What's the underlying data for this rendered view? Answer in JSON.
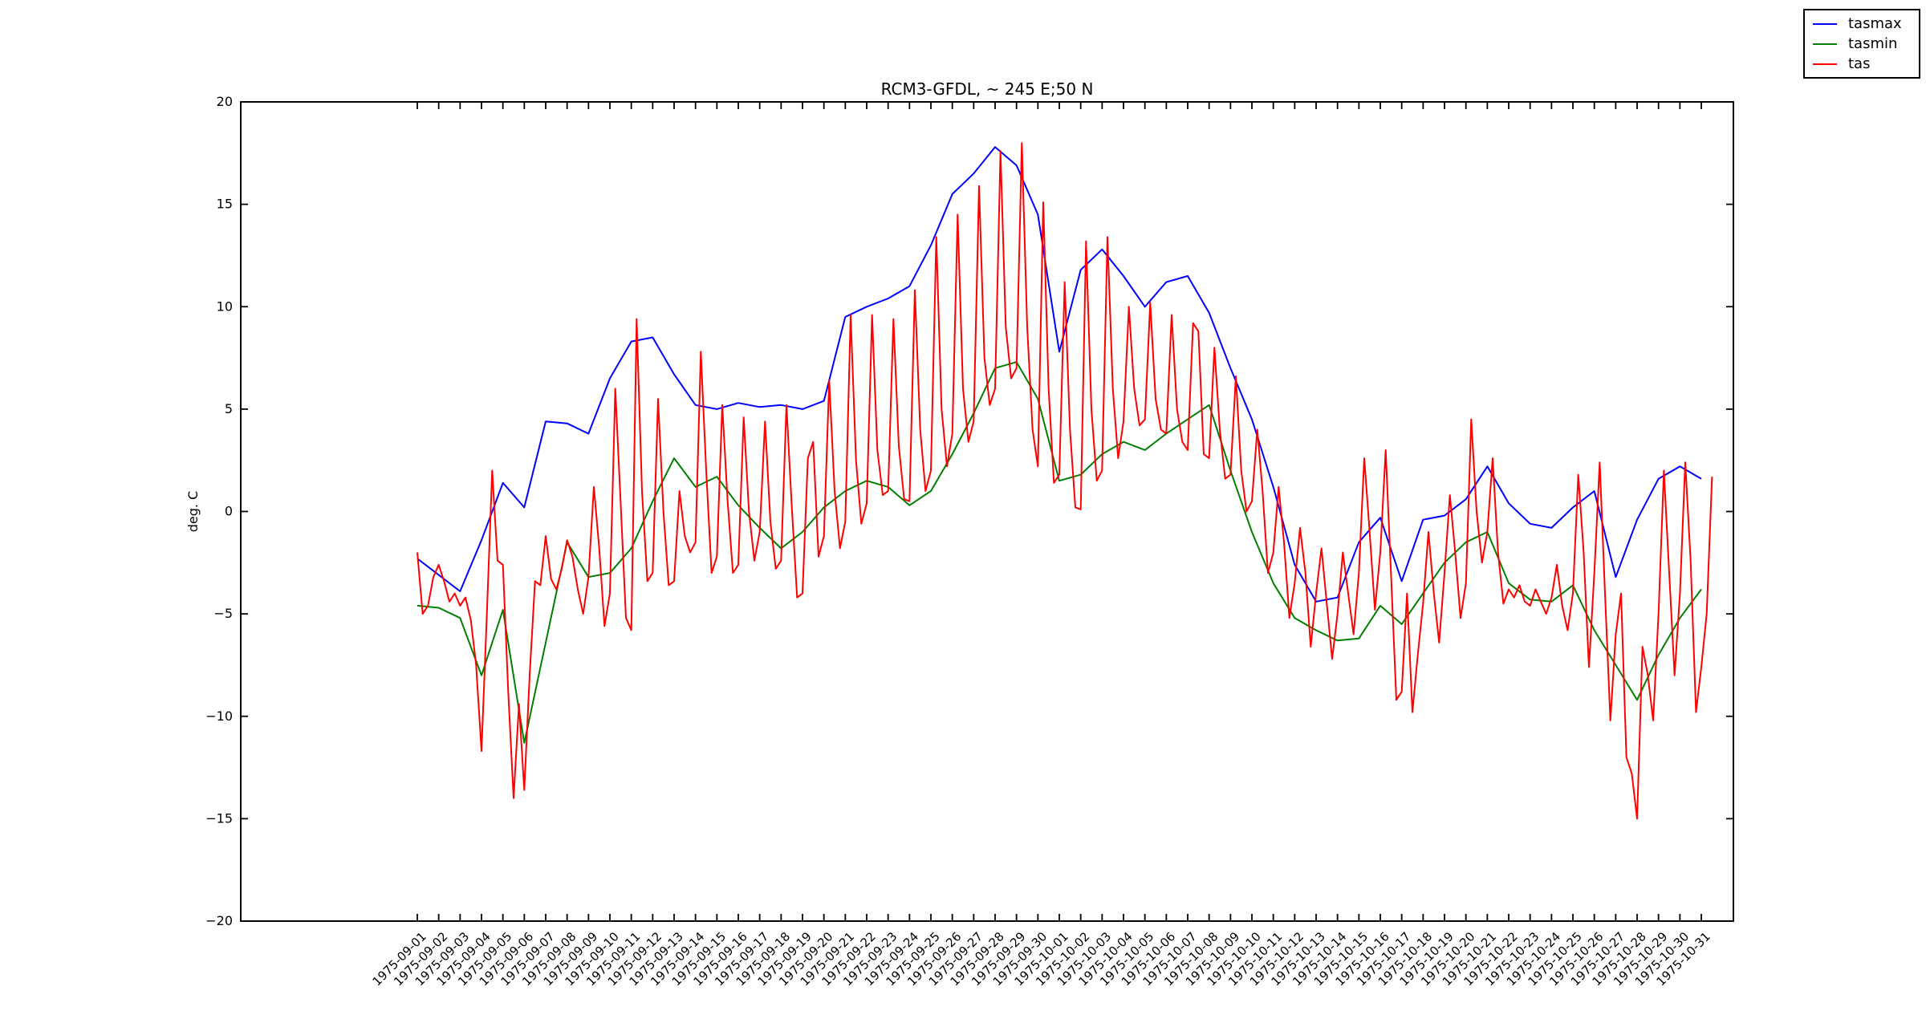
{
  "title": "RCM3-GFDL, ~ 245 E;50 N",
  "ylabel": "deg. C",
  "legend": {
    "position": "outside-top-right",
    "items": [
      {
        "label": "tasmax",
        "color": "#0000ff"
      },
      {
        "label": "tasmin",
        "color": "#008000"
      },
      {
        "label": "tas",
        "color": "#ff0000"
      }
    ]
  },
  "chart_data": {
    "type": "line",
    "title": "RCM3-GFDL, ~ 245 E;50 N",
    "xlabel": "",
    "ylabel": "deg. C",
    "ylim": [
      -20,
      20
    ],
    "yticks": [
      20,
      15,
      10,
      5,
      0,
      -5,
      -10,
      -15,
      -20
    ],
    "grid": false,
    "legend_position": "upper right, outside axes",
    "x_tick_labels": [
      "1975-09-01",
      "1975-09-02",
      "1975-09-03",
      "1975-09-04",
      "1975-09-05",
      "1975-09-06",
      "1975-09-07",
      "1975-09-08",
      "1975-09-09",
      "1975-09-10",
      "1975-09-11",
      "1975-09-12",
      "1975-09-13",
      "1975-09-14",
      "1975-09-15",
      "1975-09-16",
      "1975-09-17",
      "1975-09-18",
      "1975-09-19",
      "1975-09-20",
      "1975-09-21",
      "1975-09-22",
      "1975-09-23",
      "1975-09-24",
      "1975-09-25",
      "1975-09-26",
      "1975-09-27",
      "1975-09-28",
      "1975-09-29",
      "1975-09-30",
      "1975-10-01",
      "1975-10-02",
      "1975-10-03",
      "1975-10-04",
      "1975-10-05",
      "1975-10-06",
      "1975-10-07",
      "1975-10-08",
      "1975-10-09",
      "1975-10-10",
      "1975-10-11",
      "1975-10-12",
      "1975-10-13",
      "1975-10-14",
      "1975-10-15",
      "1975-10-16",
      "1975-10-17",
      "1975-10-18",
      "1975-10-19",
      "1975-10-20",
      "1975-10-21",
      "1975-10-22",
      "1975-10-23",
      "1975-10-24",
      "1975-10-25",
      "1975-10-26",
      "1975-10-27",
      "1975-10-28",
      "1975-10-29",
      "1975-10-30",
      "1975-10-31"
    ],
    "series": [
      {
        "name": "tasmax",
        "color": "#0000ff",
        "points_per_day": 1,
        "values": [
          -2.3,
          -3.1,
          -3.9,
          -1.4,
          1.4,
          0.2,
          4.4,
          4.3,
          3.8,
          6.5,
          8.3,
          8.5,
          6.7,
          5.2,
          5.0,
          5.3,
          5.1,
          5.2,
          5.0,
          5.4,
          9.5,
          10.0,
          10.4,
          11.0,
          13.0,
          15.5,
          16.5,
          17.8,
          16.9,
          14.5,
          7.8,
          11.8,
          12.8,
          11.5,
          10.0,
          11.2,
          11.5,
          9.7,
          7.0,
          4.5,
          1.2,
          -2.6,
          -4.4,
          -4.2,
          -1.5,
          -0.3,
          -3.4,
          -0.4,
          -0.2,
          0.6,
          2.2,
          0.4,
          -0.6,
          -0.8,
          0.2,
          1.0,
          -3.2,
          -0.4,
          1.6,
          2.2,
          1.6
        ]
      },
      {
        "name": "tasmin",
        "color": "#008000",
        "points_per_day": 1,
        "values": [
          -4.6,
          -4.7,
          -5.2,
          -8.0,
          -4.8,
          -11.3,
          -6.4,
          -1.5,
          -3.2,
          -3.0,
          -1.8,
          0.5,
          2.6,
          1.2,
          1.7,
          0.3,
          -0.8,
          -1.8,
          -1.0,
          0.2,
          1.0,
          1.5,
          1.2,
          0.3,
          1.0,
          2.8,
          4.8,
          7.0,
          7.3,
          5.5,
          1.5,
          1.8,
          2.8,
          3.4,
          3.0,
          3.8,
          4.5,
          5.2,
          2.0,
          -1.0,
          -3.5,
          -5.2,
          -5.8,
          -6.3,
          -6.2,
          -4.6,
          -5.5,
          -4.0,
          -2.5,
          -1.5,
          -1.0,
          -3.5,
          -4.3,
          -4.4,
          -3.6,
          -5.8,
          -7.5,
          -9.2,
          -7.0,
          -5.2,
          -3.8
        ]
      },
      {
        "name": "tas",
        "color": "#ff0000",
        "points_per_day": 4,
        "values": [
          -2.0,
          -5.0,
          -4.6,
          -3.2,
          -2.6,
          -3.4,
          -4.4,
          -4.0,
          -4.6,
          -4.2,
          -5.3,
          -7.5,
          -11.7,
          -5.0,
          2.0,
          -2.4,
          -2.6,
          -8.8,
          -14.0,
          -9.4,
          -13.6,
          -8.0,
          -3.4,
          -3.6,
          -1.2,
          -3.3,
          -3.8,
          -2.8,
          -1.4,
          -2.2,
          -3.8,
          -5.0,
          -3.2,
          1.2,
          -1.8,
          -5.6,
          -4.0,
          6.0,
          0.5,
          -5.2,
          -5.8,
          9.4,
          1.0,
          -3.4,
          -3.0,
          5.5,
          0.0,
          -3.6,
          -3.4,
          1.0,
          -1.2,
          -2.0,
          -1.5,
          7.8,
          2.0,
          -3.0,
          -2.2,
          5.2,
          0.5,
          -3.0,
          -2.6,
          4.6,
          0.0,
          -2.4,
          -1.0,
          4.4,
          -0.5,
          -2.8,
          -2.4,
          5.2,
          0.2,
          -4.2,
          -4.0,
          2.6,
          3.4,
          -2.2,
          -1.2,
          6.4,
          1.0,
          -1.8,
          -0.5,
          9.6,
          2.5,
          -0.6,
          0.4,
          9.6,
          3.0,
          0.8,
          1.0,
          9.4,
          3.2,
          0.6,
          0.5,
          10.8,
          4.0,
          1.0,
          2.0,
          13.4,
          5.0,
          2.2,
          3.8,
          14.5,
          6.0,
          3.4,
          4.4,
          15.9,
          7.5,
          5.2,
          6.0,
          17.6,
          9.0,
          6.5,
          7.0,
          18.0,
          9.0,
          4.0,
          2.2,
          15.1,
          6.0,
          1.4,
          1.8,
          11.2,
          4.0,
          0.2,
          0.1,
          13.2,
          5.0,
          1.5,
          2.0,
          13.4,
          6.0,
          2.6,
          4.4,
          10.0,
          6.0,
          4.2,
          4.5,
          10.2,
          5.5,
          4.0,
          3.8,
          9.6,
          5.0,
          3.4,
          3.0,
          9.2,
          8.8,
          2.8,
          2.6,
          8.0,
          4.0,
          1.6,
          1.8,
          6.6,
          2.0,
          0.0,
          0.5,
          4.0,
          1.0,
          -3.0,
          -2.0,
          1.2,
          -1.5,
          -5.2,
          -3.5,
          -0.8,
          -3.0,
          -6.6,
          -4.0,
          -1.8,
          -4.5,
          -7.2,
          -5.0,
          -2.0,
          -4.0,
          -6.0,
          -3.0,
          2.6,
          -1.0,
          -4.8,
          -2.0,
          3.0,
          -3.0,
          -9.2,
          -8.8,
          -4.0,
          -9.8,
          -7.0,
          -4.5,
          -1.0,
          -4.0,
          -6.4,
          -3.0,
          0.8,
          -2.0,
          -5.2,
          -3.5,
          4.5,
          0.0,
          -2.5,
          -1.0,
          2.6,
          -2.0,
          -4.5,
          -3.8,
          -4.2,
          -3.6,
          -4.4,
          -4.6,
          -3.8,
          -4.4,
          -5.0,
          -4.2,
          -2.6,
          -4.6,
          -5.8,
          -4.0,
          1.8,
          -2.0,
          -7.6,
          -3.0,
          2.4,
          -4.0,
          -10.2,
          -6.0,
          -4.0,
          -12.0,
          -12.8,
          -15.0,
          -6.6,
          -8.0,
          -10.2,
          -5.0,
          2.0,
          -3.0,
          -8.0,
          -4.0,
          2.4,
          -2.4,
          -9.8,
          -7.6,
          -5.0,
          1.7
        ]
      }
    ]
  }
}
